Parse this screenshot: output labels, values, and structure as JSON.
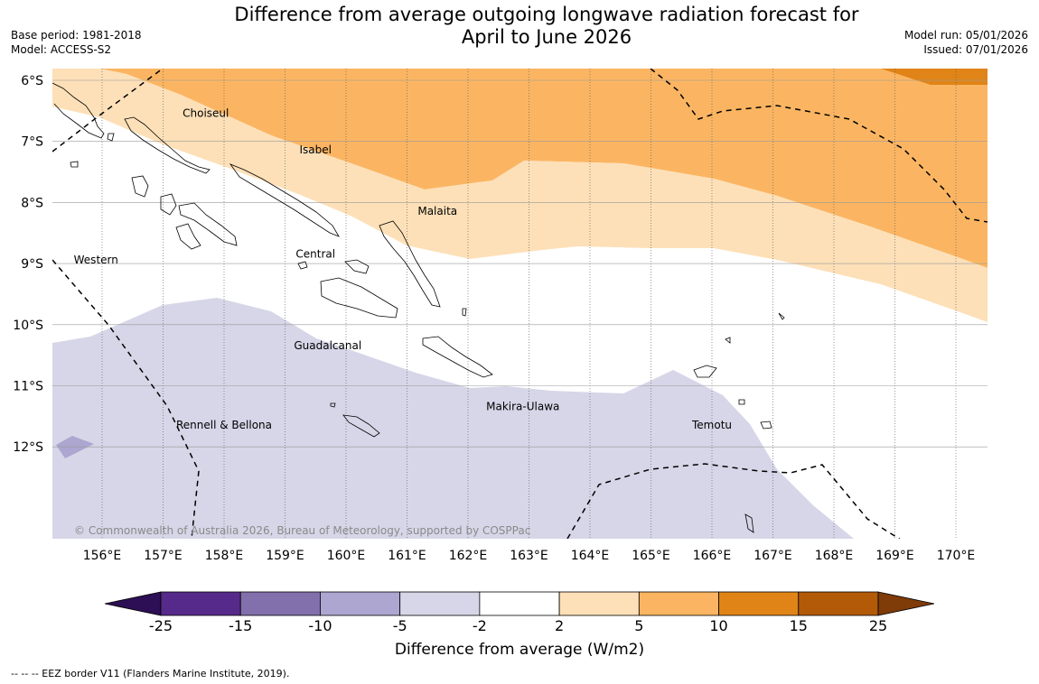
{
  "title_line1": "Difference from average outgoing longwave radiation forecast for",
  "title_line2": "April to June 2026",
  "meta": {
    "base_period": "Base period: 1981-2018",
    "model": "Model: ACCESS-S2",
    "model_run": "Model run: 05/01/2026",
    "issued": "Issued: 07/01/2026"
  },
  "copyright": "© Commonwealth of Australia 2026, Bureau of Meteorology, supported by COSPPac",
  "axes": {
    "lon_labels": [
      "156°E",
      "157°E",
      "158°E",
      "159°E",
      "160°E",
      "161°E",
      "162°E",
      "163°E",
      "164°E",
      "165°E",
      "166°E",
      "167°E",
      "168°E",
      "169°E",
      "170°E"
    ],
    "lon_values": [
      156,
      157,
      158,
      159,
      160,
      161,
      162,
      163,
      164,
      165,
      166,
      167,
      168,
      169,
      170
    ],
    "lat_labels": [
      "6°S",
      "7°S",
      "8°S",
      "9°S",
      "10°S",
      "11°S",
      "12°S"
    ],
    "lat_values": [
      -6,
      -7,
      -8,
      -9,
      -10,
      -11,
      -12
    ],
    "lon_range": [
      155.2,
      170.5
    ],
    "lat_range": [
      -13.5,
      -5.8
    ]
  },
  "province_labels": [
    {
      "name": "Choiseul",
      "lon": 157.7,
      "lat": -6.6
    },
    {
      "name": "Isabel",
      "lon": 159.5,
      "lat": -7.2
    },
    {
      "name": "Malaita",
      "lon": 161.5,
      "lat": -8.2
    },
    {
      "name": "Western",
      "lon": 155.9,
      "lat": -9.0
    },
    {
      "name": "Central",
      "lon": 159.5,
      "lat": -8.9
    },
    {
      "name": "Guadalcanal",
      "lon": 159.7,
      "lat": -10.4
    },
    {
      "name": "Makira-Ulawa",
      "lon": 162.9,
      "lat": -11.4
    },
    {
      "name": "Temotu",
      "lon": 166.0,
      "lat": -11.7
    },
    {
      "name": "Rennell & Bellona",
      "lon": 158.0,
      "lat": -11.7
    }
  ],
  "colorbar": {
    "ticks": [
      "-25",
      "-15",
      "-10",
      "-5",
      "-2",
      "2",
      "5",
      "10",
      "15",
      "25"
    ],
    "colors": [
      "#2d0f55",
      "#562a8a",
      "#8270ad",
      "#aca6d0",
      "#d6d6e8",
      "#ffffff",
      "#fde0b8",
      "#fbb562",
      "#e08418",
      "#b35a09",
      "#7f3b08"
    ],
    "label": "Difference from average (W/m2)"
  },
  "legend_note": "--  --  -- EEZ border V11 (Flanders Marine Institute, 2019).",
  "chart_data": {
    "type": "map",
    "title": "Difference from average outgoing longwave radiation forecast for April to June 2026",
    "units": "W/m2",
    "bins": [
      {
        "range": "5 to 10",
        "color": "#fbb562",
        "region": "north-east, north of ~7.8°S in west to ~9°S in east"
      },
      {
        "range": "2 to 5",
        "color": "#fde0b8",
        "region": "band across northern Solomon Islands"
      },
      {
        "range": "-2 to 2",
        "color": "#ffffff",
        "region": "central band"
      },
      {
        "range": "-5 to -2",
        "color": "#d6d6e8",
        "region": "south of ~10°S"
      },
      {
        "range": "10 to 15",
        "color": "#e08418",
        "region": "small patch near 169–170°E, 6°S"
      }
    ]
  }
}
